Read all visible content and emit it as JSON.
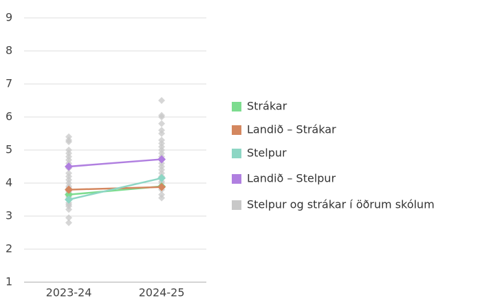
{
  "chart_data": {
    "type": "line",
    "categories": [
      "2023-24",
      "2024-25"
    ],
    "ylim": [
      1,
      9
    ],
    "yticks": [
      1,
      2,
      3,
      4,
      5,
      6,
      7,
      8,
      9
    ],
    "grid": true,
    "series": [
      {
        "name": "Strákar",
        "color": "#7ddc8f",
        "values": [
          3.65,
          3.9
        ]
      },
      {
        "name": "Landið – Strákar",
        "color": "#d4875f",
        "values": [
          3.8,
          3.88
        ]
      },
      {
        "name": "Stelpur",
        "color": "#8dd6c4",
        "values": [
          3.5,
          4.15
        ]
      },
      {
        "name": "Landið – Stelpur",
        "color": "#b07fe0",
        "values": [
          4.5,
          4.72
        ]
      },
      {
        "name": "Stelpur og strákar í öðrum skólum",
        "color": "#c8c8c8",
        "type": "scatter",
        "values": [
          [
            2.8,
            2.95,
            3.2,
            3.3,
            3.35,
            3.4,
            3.5,
            3.55,
            3.6,
            3.7,
            3.75,
            3.85,
            3.9,
            4.0,
            4.1,
            4.2,
            4.3,
            4.45,
            4.6,
            4.7,
            4.8,
            4.9,
            5.0,
            5.25,
            5.3,
            5.4
          ],
          [
            3.55,
            3.65,
            3.8,
            3.9,
            4.0,
            4.05,
            4.2,
            4.3,
            4.4,
            4.5,
            4.6,
            4.7,
            4.8,
            4.9,
            5.0,
            5.1,
            5.2,
            5.3,
            5.5,
            5.6,
            5.8,
            6.0,
            6.05,
            6.5
          ]
        ]
      }
    ]
  }
}
